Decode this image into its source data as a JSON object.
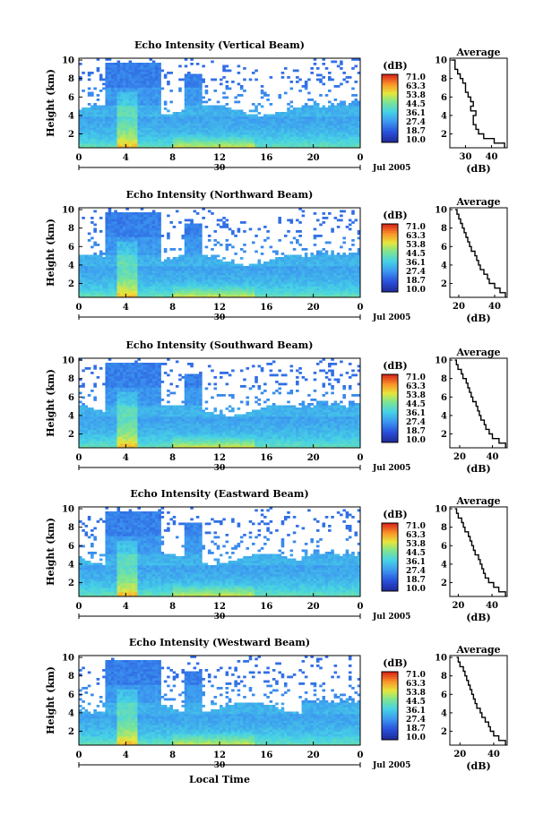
{
  "figure": {
    "xlabel": "Local Time",
    "month_label": "Jul 2005",
    "day_label": "30"
  },
  "chart_data": [
    {
      "type": "heatmap",
      "title": "Echo Intensity (Vertical Beam)",
      "ylabel": "Height (km)",
      "xlabel": "Local Time",
      "xlim": [
        0,
        24
      ],
      "ylim": [
        0.5,
        10.2
      ],
      "xticks": [
        "0",
        "4",
        "8",
        "12",
        "16",
        "20",
        "0"
      ],
      "yticks": [
        "2",
        "4",
        "6",
        "8",
        "10"
      ],
      "colorbar": {
        "unit": "(dB)",
        "ticks": [
          "71.0",
          "63.3",
          "53.8",
          "44.5",
          "36.1",
          "27.4",
          "18.7",
          "10.0"
        ]
      },
      "average_profile": {
        "title": "Average",
        "xlabel": "(dB)",
        "xticks": [
          "30",
          "40"
        ],
        "xlim": [
          24,
          46
        ],
        "height_km": [
          0.5,
          1,
          1.5,
          2,
          2.5,
          3,
          3.5,
          4,
          4.5,
          5,
          5.5,
          6,
          6.5,
          7,
          7.5,
          8,
          8.5,
          9,
          9.5,
          10
        ],
        "db": [
          45,
          41,
          37,
          35,
          34,
          33,
          33,
          34,
          32,
          33,
          32,
          31,
          30,
          30,
          29,
          28,
          27,
          26,
          26,
          25
        ]
      }
    },
    {
      "type": "heatmap",
      "title": "Echo Intensity (Northward Beam)",
      "ylabel": "Height (km)",
      "xlabel": "Local Time",
      "xlim": [
        0,
        24
      ],
      "ylim": [
        0.5,
        10.2
      ],
      "xticks": [
        "0",
        "4",
        "8",
        "12",
        "16",
        "20",
        "0"
      ],
      "yticks": [
        "2",
        "4",
        "6",
        "8",
        "10"
      ],
      "colorbar": {
        "unit": "(dB)",
        "ticks": [
          "71.0",
          "63.3",
          "53.8",
          "44.5",
          "36.1",
          "27.4",
          "18.7",
          "10.0"
        ]
      },
      "average_profile": {
        "title": "Average",
        "xlabel": "(dB)",
        "xticks": [
          "20",
          "40"
        ],
        "xlim": [
          15,
          47
        ],
        "height_km": [
          0.5,
          1,
          1.5,
          2,
          2.5,
          3,
          3.5,
          4,
          4.5,
          5,
          5.5,
          6,
          6.5,
          7,
          7.5,
          8,
          8.5,
          9,
          9.5,
          10
        ],
        "db": [
          46,
          43,
          40,
          37,
          36,
          34,
          32,
          31,
          30,
          29,
          27,
          26,
          25,
          24,
          23,
          22,
          21,
          20,
          19,
          18
        ]
      }
    },
    {
      "type": "heatmap",
      "title": "Echo Intensity (Southward Beam)",
      "ylabel": "Height (km)",
      "xlabel": "Local Time",
      "xlim": [
        0,
        24
      ],
      "ylim": [
        0.5,
        10.2
      ],
      "xticks": [
        "0",
        "4",
        "8",
        "12",
        "16",
        "20",
        "0"
      ],
      "yticks": [
        "2",
        "4",
        "6",
        "8",
        "10"
      ],
      "colorbar": {
        "unit": "(dB)",
        "ticks": [
          "71.0",
          "63.3",
          "53.8",
          "44.5",
          "36.1",
          "27.4",
          "18.7",
          "10.0"
        ]
      },
      "average_profile": {
        "title": "Average",
        "xlabel": "(dB)",
        "xticks": [
          "20",
          "40"
        ],
        "xlim": [
          14,
          49
        ],
        "height_km": [
          0.5,
          1,
          1.5,
          2,
          2.5,
          3,
          3.5,
          4,
          4.5,
          5,
          5.5,
          6,
          6.5,
          7,
          7.5,
          8,
          8.5,
          9,
          9.5,
          10
        ],
        "db": [
          48,
          44,
          40,
          38,
          36,
          35,
          33,
          32,
          31,
          30,
          28,
          27,
          26,
          25,
          24,
          22,
          21,
          19,
          18,
          17
        ]
      }
    },
    {
      "type": "heatmap",
      "title": "Echo Intensity (Eastward Beam)",
      "ylabel": "Height (km)",
      "xlabel": "Local Time",
      "xlim": [
        0,
        24
      ],
      "ylim": [
        0.5,
        10.2
      ],
      "xticks": [
        "0",
        "4",
        "8",
        "12",
        "16",
        "20",
        "0"
      ],
      "yticks": [
        "2",
        "4",
        "6",
        "8",
        "10"
      ],
      "colorbar": {
        "unit": "(dB)",
        "ticks": [
          "71.0",
          "63.3",
          "53.8",
          "44.5",
          "36.1",
          "27.4",
          "18.7",
          "10.0"
        ]
      },
      "average_profile": {
        "title": "Average",
        "xlabel": "(dB)",
        "xticks": [
          "20",
          "40"
        ],
        "xlim": [
          15,
          49
        ],
        "height_km": [
          0.5,
          1,
          1.5,
          2,
          2.5,
          3,
          3.5,
          4,
          4.5,
          5,
          5.5,
          6,
          6.5,
          7,
          7.5,
          8,
          8.5,
          9,
          9.5,
          10
        ],
        "db": [
          48,
          44,
          41,
          38,
          36,
          35,
          34,
          33,
          32,
          30,
          29,
          28,
          27,
          26,
          24,
          23,
          22,
          20,
          19,
          18
        ]
      }
    },
    {
      "type": "heatmap",
      "title": "Echo Intensity (Westward Beam)",
      "ylabel": "Height (km)",
      "xlabel": "Local Time",
      "xlim": [
        0,
        24
      ],
      "ylim": [
        0.5,
        10.2
      ],
      "xticks": [
        "0",
        "4",
        "8",
        "12",
        "16",
        "20",
        "0"
      ],
      "yticks": [
        "2",
        "4",
        "6",
        "8",
        "10"
      ],
      "colorbar": {
        "unit": "(dB)",
        "ticks": [
          "71.0",
          "63.3",
          "53.8",
          "44.5",
          "36.1",
          "27.4",
          "18.7",
          "10.0"
        ]
      },
      "average_profile": {
        "title": "Average",
        "xlabel": "(dB)",
        "xticks": [
          "20",
          "40"
        ],
        "xlim": [
          14,
          48
        ],
        "height_km": [
          0.5,
          1,
          1.5,
          2,
          2.5,
          3,
          3.5,
          4,
          4.5,
          5,
          5.5,
          6,
          6.5,
          7,
          7.5,
          8,
          8.5,
          9,
          9.5,
          10
        ],
        "db": [
          47,
          43,
          40,
          38,
          37,
          35,
          33,
          32,
          30,
          29,
          28,
          27,
          26,
          25,
          24,
          23,
          22,
          20,
          19,
          18
        ]
      }
    }
  ]
}
